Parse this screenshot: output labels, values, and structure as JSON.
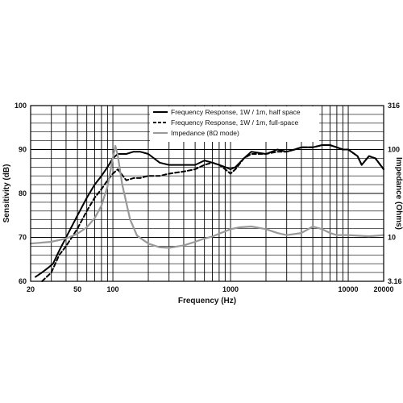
{
  "chart_data": {
    "type": "line",
    "xlabel": "Frequency (Hz)",
    "ylabel": "Sensitivity (dB)",
    "y2label": "Impedance (Ohms)",
    "x_scale": "log",
    "xlim": [
      20,
      20000
    ],
    "ylim": [
      60,
      100
    ],
    "y2lim": [
      3.16,
      316
    ],
    "y2_scale": "log",
    "grid": true,
    "legend_position": "top-right",
    "x_ticks": [
      "20",
      "50",
      "100",
      "1000",
      "10000",
      "20000"
    ],
    "x_tick_values": [
      20,
      50,
      100,
      1000,
      10000,
      20000
    ],
    "y_ticks": [
      "60",
      "70",
      "80",
      "90",
      "100"
    ],
    "y_tick_values": [
      60,
      70,
      80,
      90,
      100
    ],
    "y2_ticks": [
      "3.16",
      "10",
      "100",
      "316"
    ],
    "y2_tick_values": [
      3.16,
      10,
      100,
      316
    ],
    "series": [
      {
        "name": "Frequency Response, 1W / 1m, half space",
        "axis": "left",
        "style": "solid",
        "color": "#000000",
        "x": [
          22,
          25,
          28,
          31,
          35,
          40,
          50,
          60,
          70,
          80,
          90,
          100,
          110,
          130,
          150,
          170,
          200,
          250,
          300,
          400,
          500,
          600,
          700,
          800,
          900,
          1000,
          1100,
          1300,
          1500,
          2000,
          2500,
          3000,
          3500,
          4000,
          5000,
          6000,
          7000,
          8000,
          9000,
          10000,
          12000,
          13000,
          15000,
          17000,
          20000
        ],
        "y": [
          61,
          62,
          63,
          64,
          67,
          70,
          75,
          79,
          82,
          84,
          86,
          88,
          89,
          89,
          89.5,
          89.5,
          89,
          87,
          86.5,
          86.5,
          86.5,
          87.5,
          87,
          86.5,
          86,
          85.5,
          86,
          88,
          89.5,
          89,
          90,
          89.5,
          90,
          90.5,
          90.5,
          91,
          91,
          90.5,
          90,
          90,
          88.5,
          86.5,
          88.5,
          88,
          85.5
        ]
      },
      {
        "name": "Frequency Response, 1W / 1m, full-space",
        "axis": "left",
        "style": "dashed",
        "color": "#000000",
        "x": [
          25,
          30,
          35,
          40,
          50,
          60,
          70,
          80,
          90,
          100,
          110,
          130,
          150,
          170,
          200,
          250,
          300,
          400,
          500,
          600,
          700,
          800,
          900,
          1000,
          1100,
          1300,
          1500,
          2000,
          2500,
          3000,
          3500,
          4000,
          5000,
          6000,
          7000,
          8000,
          9000,
          10000,
          12000,
          13000,
          15000,
          17000,
          20000
        ],
        "y": [
          60,
          62,
          66,
          68,
          72,
          76,
          79,
          81,
          83,
          84.5,
          85.5,
          83,
          83.5,
          83.5,
          84,
          84,
          84.5,
          85,
          85.5,
          86.5,
          87,
          86.5,
          85.5,
          84.5,
          85.5,
          88,
          89,
          89,
          89.5,
          89.5,
          90,
          90.5,
          90.5,
          91,
          91,
          90.5,
          90,
          90,
          88.5,
          86.5,
          88.5,
          88,
          85.5
        ]
      },
      {
        "name": "Impedance (8Ω mode)",
        "axis": "right",
        "style": "solid",
        "color": "#999999",
        "x": [
          20,
          30,
          40,
          50,
          60,
          70,
          80,
          90,
          100,
          105,
          110,
          120,
          140,
          160,
          200,
          250,
          300,
          400,
          500,
          600,
          700,
          800,
          900,
          1000,
          1200,
          1500,
          2000,
          2500,
          3000,
          4000,
          5000,
          6000,
          7000,
          8000,
          10000,
          15000,
          20000
        ],
        "y": [
          8.5,
          8.9,
          9.7,
          11,
          13,
          16.5,
          23,
          38,
          80,
          110,
          86,
          40,
          16,
          10.5,
          8.5,
          7.7,
          7.6,
          8.1,
          8.9,
          9.7,
          10.2,
          11,
          11.7,
          12.4,
          13,
          13.3,
          12.4,
          11.2,
          10.6,
          11.2,
          13.3,
          12.4,
          11.2,
          10.6,
          10.6,
          10.3,
          10.6
        ]
      }
    ]
  }
}
